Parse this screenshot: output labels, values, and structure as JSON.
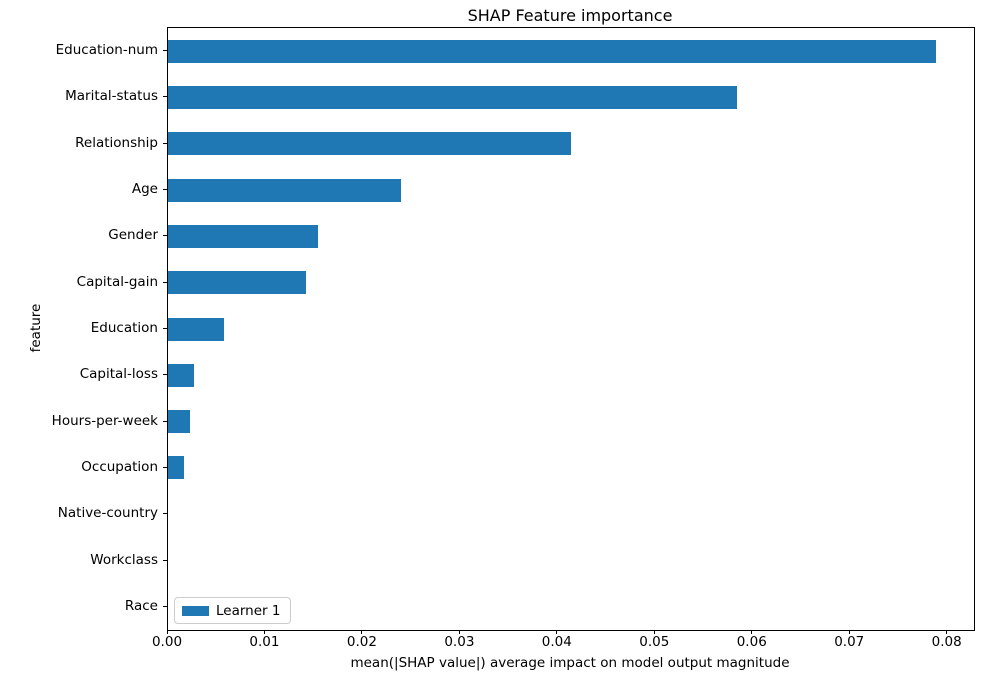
{
  "title": "SHAP Feature importance",
  "axes": {
    "xlabel": "mean(|SHAP value|) average impact on model output magnitude",
    "ylabel": "feature"
  },
  "legend": {
    "label": "Learner 1",
    "position": "lower left"
  },
  "colors": {
    "bar": "#1f77b4",
    "spine": "#000000",
    "legend_border": "#cccccc",
    "background": "#ffffff"
  },
  "chart_data": {
    "type": "bar",
    "orientation": "horizontal",
    "title": "SHAP Feature importance",
    "xlabel": "mean(|SHAP value|) average impact on model output magnitude",
    "ylabel": "feature",
    "categories": [
      "Education-num",
      "Marital-status",
      "Relationship",
      "Age",
      "Gender",
      "Capital-gain",
      "Education",
      "Capital-loss",
      "Hours-per-week",
      "Occupation",
      "Native-country",
      "Workclass",
      "Race"
    ],
    "series": [
      {
        "name": "Learner 1",
        "values": [
          0.0788,
          0.0584,
          0.0413,
          0.0239,
          0.0154,
          0.0142,
          0.0057,
          0.0027,
          0.0023,
          0.0016,
          0.0,
          0.0,
          0.0
        ]
      }
    ],
    "xlim": [
      0,
      0.0827
    ],
    "xticks": [
      0.0,
      0.01,
      0.02,
      0.03,
      0.04,
      0.05,
      0.06,
      0.07,
      0.08
    ],
    "xtick_labels": [
      "0.00",
      "0.01",
      "0.02",
      "0.03",
      "0.04",
      "0.05",
      "0.06",
      "0.07",
      "0.08"
    ],
    "grid": false,
    "legend_position": "lower left",
    "bar_color": "#1f77b4"
  }
}
